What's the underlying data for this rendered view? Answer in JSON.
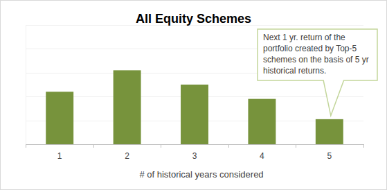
{
  "chart_data": {
    "type": "bar",
    "title": "All Equity Schemes",
    "x_label": "# of historical years considered",
    "annotation": "Next 1 yr. return of the portfolio created by Top-5 schemes on the basis of 5 yr historical returns.",
    "categories": [
      "1",
      "2",
      "3",
      "4",
      "5"
    ],
    "values": [
      2.2,
      3.1,
      2.5,
      1.9,
      1.05
    ],
    "color": "#77933c",
    "ylim": [
      0,
      5
    ],
    "yticks": [
      0,
      1,
      2,
      3,
      4,
      5
    ],
    "grid": true,
    "tick_labels": "x"
  }
}
